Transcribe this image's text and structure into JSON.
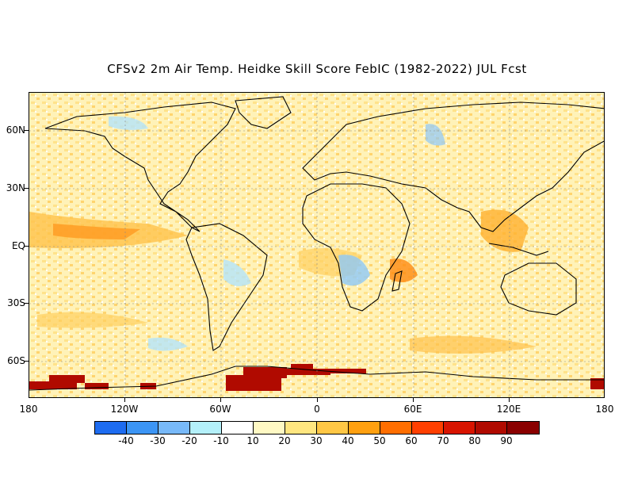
{
  "title": "CFSv2 2m Air Temp. Heidke Skill Score FebIC (1982-2022) JUL Fcst",
  "lat_labels": [
    "60N",
    "30N",
    "EQ",
    "30S",
    "60S"
  ],
  "lon_labels": [
    "180",
    "120W",
    "60W",
    "0",
    "60E",
    "120E",
    "180"
  ],
  "colorbar": {
    "colors": [
      "#1e6cf0",
      "#3c95f5",
      "#78b9f9",
      "#b4f0fa",
      "#ffffff",
      "#fff9c4",
      "#ffe680",
      "#ffc745",
      "#ffa010",
      "#ff6e00",
      "#ff3f00",
      "#d81400",
      "#b00a00",
      "#8a0000"
    ],
    "labels": [
      "-40",
      "-30",
      "-20",
      "-10",
      "10",
      "20",
      "30",
      "40",
      "50",
      "60",
      "70",
      "80",
      "90"
    ]
  }
}
